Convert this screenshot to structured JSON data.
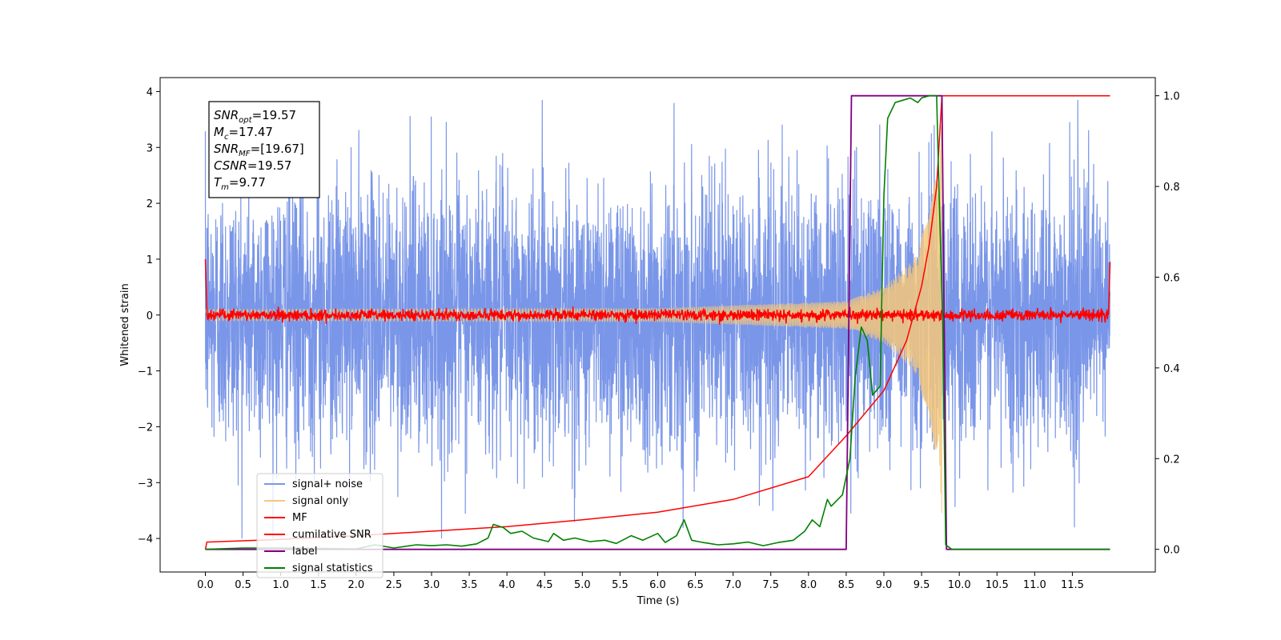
{
  "chart_data": {
    "type": "line",
    "xlabel": "Time (s)",
    "ylabel": "Whitened strain",
    "xlim": [
      -0.6,
      12.6
    ],
    "ylim": [
      -4.6,
      4.25
    ],
    "y2lim": [
      -0.05,
      1.04
    ],
    "x_ticks": [
      0.0,
      0.5,
      1.0,
      1.5,
      2.0,
      2.5,
      3.0,
      3.5,
      4.0,
      4.5,
      5.0,
      5.5,
      6.0,
      6.5,
      7.0,
      7.5,
      8.0,
      8.5,
      9.0,
      9.5,
      10.0,
      10.5,
      11.0,
      11.5
    ],
    "x_tick_labels": [
      "0.0",
      "0.5",
      "1.0",
      "1.5",
      "2.0",
      "2.5",
      "3.0",
      "3.5",
      "4.0",
      "4.5",
      "5.0",
      "5.5",
      "6.0",
      "6.5",
      "7.0",
      "7.5",
      "8.0",
      "8.5",
      "9.0",
      "9.5",
      "10.0",
      "10.5",
      "11.0",
      "11.5"
    ],
    "y_ticks": [
      4,
      3,
      2,
      1,
      0,
      -1,
      -2,
      -3,
      -4
    ],
    "y_tick_labels": [
      "4",
      "3",
      "2",
      "1",
      "0",
      "−1",
      "−2",
      "−3",
      "−4"
    ],
    "y2_ticks": [
      1.0,
      0.8,
      0.6,
      0.4,
      0.2,
      0.0
    ],
    "y2_tick_labels": [
      "1.0",
      "0.8",
      "0.6",
      "0.4",
      "0.2",
      "0.0"
    ],
    "grid": false,
    "legend_placement": "lower-left",
    "annotation": {
      "lines": [
        {
          "main": "SNR",
          "sub": "opt",
          "rest": "=19.57"
        },
        {
          "main": "M",
          "sub": "c",
          "rest": "=17.47"
        },
        {
          "main": "SNR",
          "sub": "MF",
          "rest": "=[19.67]"
        },
        {
          "main": "CSNR",
          "sub": "",
          "rest": "=19.57"
        },
        {
          "main": "T",
          "sub": "m",
          "rest": "=9.77"
        }
      ]
    },
    "series": [
      {
        "name": "signal+ noise",
        "color": "#7a96e8",
        "axis": "left",
        "kind": "noisy_band",
        "x_range": [
          0.0,
          12.0
        ],
        "typical_range": [
          -1.6,
          1.6
        ],
        "peak_range": [
          -4.0,
          3.85
        ]
      },
      {
        "name": "signal only",
        "color": "#f5c77a",
        "axis": "left",
        "kind": "chirp",
        "x_range": [
          0.0,
          9.77
        ],
        "amplitude_points": [
          [
            0.0,
            0.1
          ],
          [
            6.0,
            0.12
          ],
          [
            8.5,
            0.25
          ],
          [
            9.0,
            0.5
          ],
          [
            9.4,
            1.0
          ],
          [
            9.6,
            1.8
          ],
          [
            9.7,
            2.6
          ],
          [
            9.77,
            3.6
          ]
        ]
      },
      {
        "name": "MF",
        "color": "#ff0000",
        "axis": "left",
        "kind": "noisy_line",
        "x_range": [
          0.0,
          12.0
        ],
        "level": 0.0,
        "noise": 0.05,
        "edge_points": [
          [
            0.0,
            1.0
          ],
          [
            0.02,
            0.1
          ],
          [
            11.98,
            0.1
          ],
          [
            12.0,
            0.95
          ]
        ]
      },
      {
        "name": "cumilative SNR",
        "color": "#ff0000",
        "axis": "right",
        "points": [
          [
            0.0,
            0.0
          ],
          [
            0.02,
            0.016
          ],
          [
            1.0,
            0.022
          ],
          [
            2.0,
            0.03
          ],
          [
            3.0,
            0.04
          ],
          [
            4.0,
            0.05
          ],
          [
            5.0,
            0.065
          ],
          [
            6.0,
            0.082
          ],
          [
            7.0,
            0.11
          ],
          [
            8.0,
            0.16
          ],
          [
            8.5,
            0.25
          ],
          [
            9.0,
            0.35
          ],
          [
            9.3,
            0.46
          ],
          [
            9.5,
            0.58
          ],
          [
            9.6,
            0.67
          ],
          [
            9.7,
            0.8
          ],
          [
            9.77,
            1.0
          ],
          [
            12.0,
            1.0
          ]
        ]
      },
      {
        "name": "label",
        "color": "#800080",
        "axis": "right",
        "points": [
          [
            0.0,
            0.0
          ],
          [
            8.5,
            0.0
          ],
          [
            8.57,
            1.0
          ],
          [
            9.77,
            1.0
          ],
          [
            9.83,
            0.0
          ],
          [
            12.0,
            0.0
          ]
        ]
      },
      {
        "name": "signal statistics",
        "color": "#008000",
        "axis": "right",
        "points": [
          [
            0.0,
            0.0
          ],
          [
            0.5,
            0.003
          ],
          [
            1.0,
            0.003
          ],
          [
            1.5,
            0.002
          ],
          [
            2.0,
            0.001
          ],
          [
            2.25,
            0.01
          ],
          [
            2.5,
            0.003
          ],
          [
            2.8,
            0.01
          ],
          [
            3.0,
            0.008
          ],
          [
            3.2,
            0.01
          ],
          [
            3.4,
            0.007
          ],
          [
            3.6,
            0.012
          ],
          [
            3.75,
            0.025
          ],
          [
            3.82,
            0.055
          ],
          [
            3.95,
            0.048
          ],
          [
            4.05,
            0.035
          ],
          [
            4.2,
            0.04
          ],
          [
            4.35,
            0.025
          ],
          [
            4.55,
            0.017
          ],
          [
            4.62,
            0.035
          ],
          [
            4.75,
            0.02
          ],
          [
            4.9,
            0.025
          ],
          [
            5.1,
            0.017
          ],
          [
            5.3,
            0.02
          ],
          [
            5.45,
            0.013
          ],
          [
            5.65,
            0.03
          ],
          [
            5.8,
            0.02
          ],
          [
            6.0,
            0.035
          ],
          [
            6.1,
            0.015
          ],
          [
            6.25,
            0.03
          ],
          [
            6.35,
            0.065
          ],
          [
            6.45,
            0.02
          ],
          [
            6.6,
            0.015
          ],
          [
            6.8,
            0.01
          ],
          [
            7.0,
            0.012
          ],
          [
            7.2,
            0.016
          ],
          [
            7.4,
            0.008
          ],
          [
            7.6,
            0.015
          ],
          [
            7.8,
            0.02
          ],
          [
            7.95,
            0.04
          ],
          [
            8.05,
            0.065
          ],
          [
            8.15,
            0.05
          ],
          [
            8.25,
            0.11
          ],
          [
            8.3,
            0.095
          ],
          [
            8.45,
            0.12
          ],
          [
            8.55,
            0.2
          ],
          [
            8.62,
            0.38
          ],
          [
            8.7,
            0.49
          ],
          [
            8.78,
            0.46
          ],
          [
            8.85,
            0.34
          ],
          [
            8.95,
            0.36
          ],
          [
            9.0,
            0.78
          ],
          [
            9.05,
            0.95
          ],
          [
            9.15,
            0.985
          ],
          [
            9.25,
            0.99
          ],
          [
            9.35,
            0.995
          ],
          [
            9.45,
            0.985
          ],
          [
            9.5,
            0.995
          ],
          [
            9.6,
            1.0
          ],
          [
            9.7,
            1.0
          ],
          [
            9.73,
            0.8
          ],
          [
            9.78,
            0.5
          ],
          [
            9.82,
            0.01
          ],
          [
            9.9,
            0.0
          ],
          [
            12.0,
            0.0
          ]
        ]
      }
    ]
  }
}
